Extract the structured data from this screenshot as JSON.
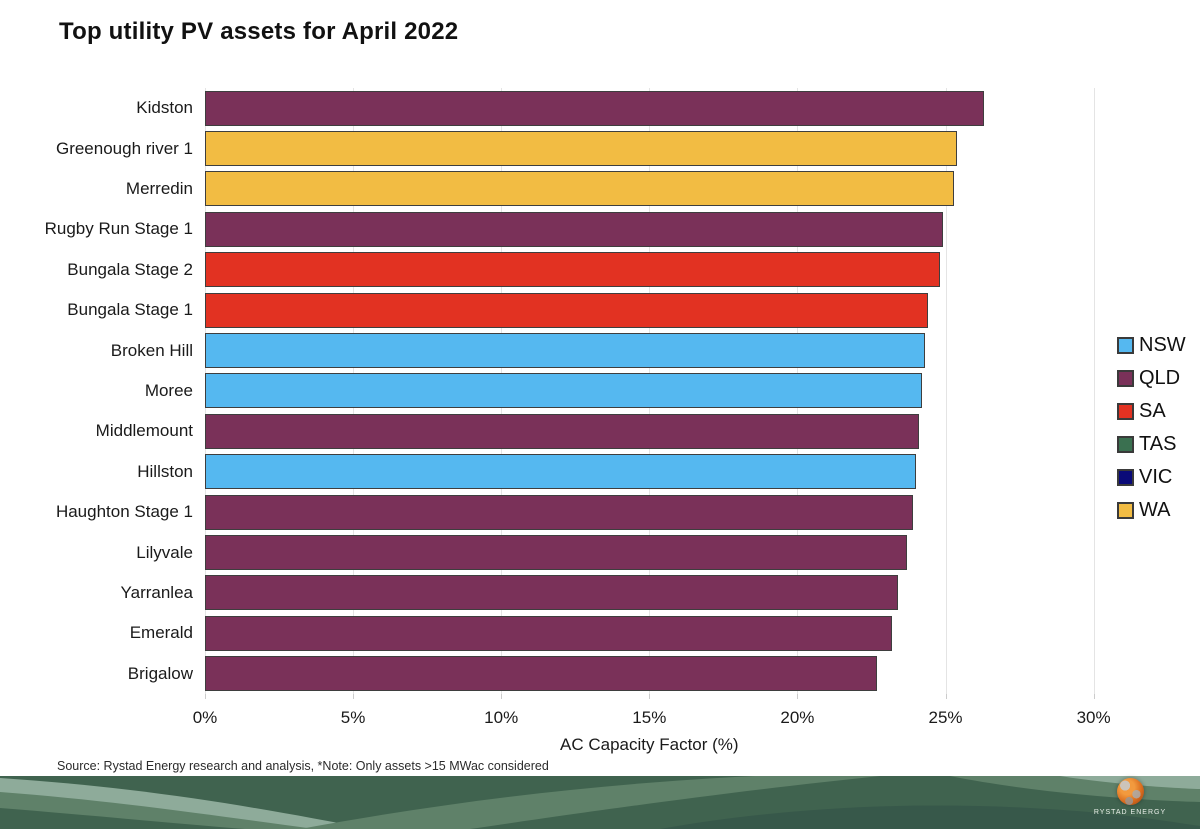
{
  "title": "Top utility PV assets for April 2022",
  "chart_data": {
    "type": "bar",
    "orientation": "horizontal",
    "title": "Top utility PV assets for April 2022",
    "xlabel": "AC Capacity Factor (%)",
    "ylabel": "",
    "xlim": [
      0,
      30
    ],
    "xtick_labels": [
      "0%",
      "5%",
      "10%",
      "15%",
      "20%",
      "25%",
      "30%"
    ],
    "xtick_values": [
      0,
      5,
      10,
      15,
      20,
      25,
      30
    ],
    "grid": "vertical-only",
    "legend_position": "right",
    "categories": [
      "Kidston",
      "Greenough river 1",
      "Merredin",
      "Rugby Run Stage 1",
      "Bungala Stage 2",
      "Bungala Stage 1",
      "Broken Hill",
      "Moree",
      "Middlemount",
      "Hillston",
      "Haughton Stage 1",
      "Lilyvale",
      "Yarranlea",
      "Emerald",
      "Brigalow"
    ],
    "values": [
      26.3,
      25.4,
      25.3,
      24.9,
      24.8,
      24.4,
      24.3,
      24.2,
      24.1,
      24.0,
      23.9,
      23.7,
      23.4,
      23.2,
      22.7
    ],
    "states": [
      "QLD",
      "WA",
      "WA",
      "QLD",
      "SA",
      "SA",
      "NSW",
      "NSW",
      "QLD",
      "NSW",
      "QLD",
      "QLD",
      "QLD",
      "QLD",
      "QLD"
    ],
    "state_colors": {
      "NSW": "#55b8f0",
      "QLD": "#7a3159",
      "SA": "#e23222",
      "TAS": "#3a7050",
      "VIC": "#0a0a78",
      "WA": "#f2bc43"
    },
    "legend": [
      {
        "label": "NSW",
        "color": "#55b8f0"
      },
      {
        "label": "QLD",
        "color": "#7a3159"
      },
      {
        "label": "SA",
        "color": "#e23222"
      },
      {
        "label": "TAS",
        "color": "#3a7050"
      },
      {
        "label": "VIC",
        "color": "#0a0a78"
      },
      {
        "label": "WA",
        "color": "#f2bc43"
      }
    ],
    "bar_border_color": "#3e3e3e"
  },
  "source_note": "Source: Rystad Energy research and analysis, *Note: Only assets >15 MWac considered",
  "footer": {
    "brand": "RYSTAD ENERGY",
    "band_colors": {
      "base": "#40634f",
      "light": "#8eab9a",
      "medium": "#5f8169",
      "dark": "#37584a"
    }
  }
}
